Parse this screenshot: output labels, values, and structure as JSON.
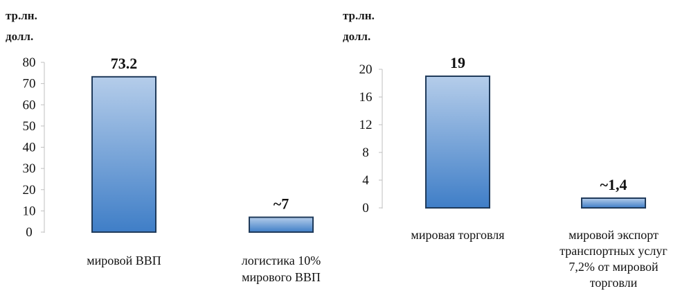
{
  "chart_data": [
    {
      "type": "bar",
      "unit_label": [
        "тр.лн.",
        "долл."
      ],
      "categories": [
        [
          "мировой ВВП"
        ],
        [
          "логистика 10%",
          "мирового ВВП"
        ]
      ],
      "values": [
        73.2,
        7
      ],
      "data_labels": [
        "73.2",
        "~7"
      ],
      "ylim": [
        0,
        80
      ],
      "yticks": [
        0,
        10,
        20,
        30,
        40,
        50,
        60,
        70,
        80
      ],
      "grid": false,
      "legend": "none"
    },
    {
      "type": "bar",
      "unit_label": [
        "тр.лн.",
        "долл."
      ],
      "categories": [
        [
          "мировая торговля"
        ],
        [
          "мировой экспорт",
          "транспортных услуг",
          "7,2% от мировой",
          "торговли"
        ]
      ],
      "values": [
        19,
        1.4
      ],
      "data_labels": [
        "19",
        "~1,4"
      ],
      "ylim": [
        0,
        20
      ],
      "yticks": [
        0,
        4,
        8,
        12,
        16,
        20
      ],
      "grid": false,
      "legend": "none"
    }
  ],
  "colors": {
    "bar_fill_top": "#b5cdea",
    "bar_fill_bottom": "#3f7ec7",
    "bar_stroke": "#1f3a5a",
    "axis": "#bfbfbf"
  }
}
